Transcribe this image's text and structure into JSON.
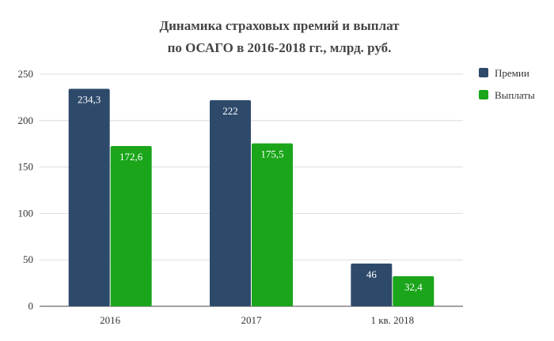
{
  "chart_data": {
    "type": "bar",
    "title": [
      "Динамика страховых премий и выплат",
      "по ОСАГО в 2016-2018 гг., млрд. руб."
    ],
    "categories": [
      "2016",
      "2017",
      "1 кв. 2018"
    ],
    "series": [
      {
        "name": "Премии",
        "values": [
          234.3,
          222,
          46
        ],
        "labels": [
          "234,3",
          "222",
          "46"
        ],
        "color": "#2e4a6b"
      },
      {
        "name": "Выплаты",
        "values": [
          172.6,
          175.5,
          32.4
        ],
        "labels": [
          "172,6",
          "175,5",
          "32,4"
        ],
        "color": "#1aa51a"
      }
    ],
    "y_ticks": [
      0,
      50,
      100,
      150,
      200,
      250
    ],
    "ylim": [
      0,
      250
    ],
    "grid": true,
    "legend_position": "right"
  }
}
